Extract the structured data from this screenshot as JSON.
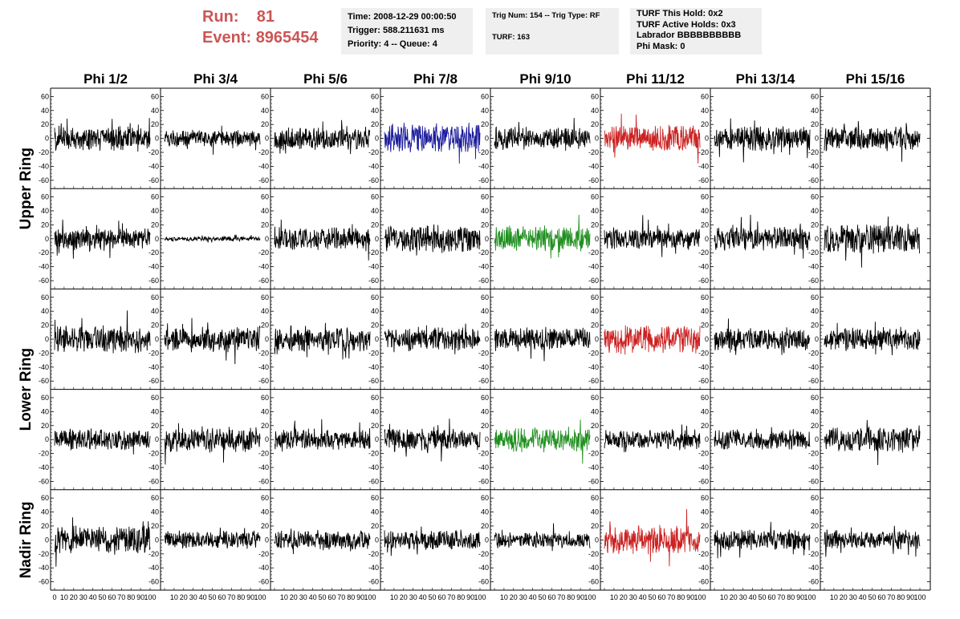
{
  "header": {
    "run_label": "Run:",
    "run_value": "81",
    "event_label": "Event:",
    "event_value": "8965454",
    "box1": [
      "Time: 2008-12-29 00:00:50",
      "Trigger: 588.211631 ms",
      "Priority: 4 -- Queue: 4"
    ],
    "box2": [
      "Trig Num: 154 -- Trig Type: RF",
      "TURF: 163"
    ],
    "box3": [
      "TURF This Hold: 0x2",
      "TURF Active Holds: 0x3",
      "Labrador BBBBBBBBBB",
      "Phi Mask: 0"
    ]
  },
  "colors": {
    "accent_text": "#cc5555",
    "info_bg": "#efefef",
    "trace_default": "#000000",
    "trace_blue": "#1a1a9c",
    "trace_red": "#cc2222",
    "trace_green": "#1f8f1f"
  },
  "chart_data": {
    "type": "line",
    "grid": false,
    "columns": [
      "Phi 1/2",
      "Phi 3/4",
      "Phi 5/6",
      "Phi 7/8",
      "Phi 9/10",
      "Phi 11/12",
      "Phi 13/14",
      "Phi 15/16"
    ],
    "ring_labels": [
      "Upper Ring",
      "Lower Ring",
      "Nadir Ring"
    ],
    "ylim": [
      -65,
      65
    ],
    "xlim": [
      0,
      100
    ],
    "y_ticks": [
      -60,
      -40,
      -20,
      0,
      20,
      40,
      60
    ],
    "x_ticks": [
      0,
      10,
      20,
      30,
      40,
      50,
      60,
      70,
      80,
      90,
      100
    ],
    "bottom_x_tick_labels": [
      [
        "0",
        "10",
        "20",
        "30",
        "40",
        "50",
        "60",
        "70",
        "80",
        "90",
        "100"
      ],
      [
        "10",
        "20",
        "30",
        "40",
        "50",
        "60",
        "70",
        "80",
        "90",
        "100"
      ],
      [
        "10",
        "20",
        "30",
        "40",
        "50",
        "60",
        "70",
        "80",
        "90",
        "100"
      ],
      [
        "10",
        "20",
        "30",
        "40",
        "50",
        "60",
        "70",
        "80",
        "90",
        "100"
      ],
      [
        "10",
        "20",
        "30",
        "40",
        "50",
        "60",
        "70",
        "80",
        "90",
        "100"
      ],
      [
        "10",
        "20",
        "30",
        "40",
        "50",
        "60",
        "70",
        "80",
        "90",
        "100"
      ],
      [
        "10",
        "20",
        "30",
        "40",
        "50",
        "60",
        "70",
        "80",
        "90",
        "100"
      ],
      [
        "10",
        "20",
        "30",
        "40",
        "50",
        "60",
        "70",
        "80",
        "90",
        "100"
      ]
    ],
    "panel_styles": [
      [
        "black",
        "black",
        "black",
        "blue",
        "black",
        "red",
        "black",
        "black"
      ],
      [
        "black",
        "black",
        "black",
        "black",
        "green",
        "black",
        "black",
        "black"
      ],
      [
        "black",
        "black",
        "black",
        "black",
        "black",
        "red",
        "black",
        "black"
      ],
      [
        "black",
        "black",
        "black",
        "black",
        "green",
        "black",
        "black",
        "black"
      ],
      [
        "black",
        "black",
        "black",
        "black",
        "black",
        "red",
        "black",
        "black"
      ]
    ],
    "panel_amplitude": [
      [
        15,
        10,
        14,
        18,
        14,
        16,
        15,
        14
      ],
      [
        13,
        3,
        14,
        16,
        15,
        13,
        14,
        18
      ],
      [
        16,
        15,
        15,
        14,
        14,
        17,
        14,
        14
      ],
      [
        13,
        15,
        13,
        14,
        15,
        12,
        12,
        15
      ],
      [
        17,
        11,
        12,
        12,
        10,
        17,
        12,
        11
      ]
    ]
  }
}
